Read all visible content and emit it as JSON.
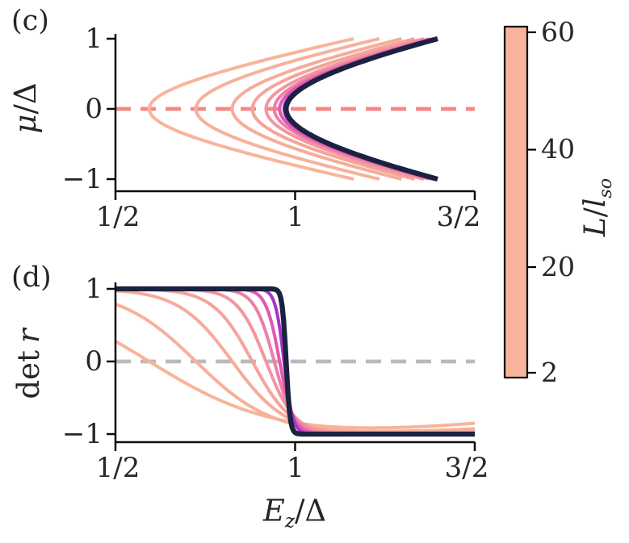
{
  "labels": {
    "panel_c": "(c)",
    "panel_d": "(d)",
    "ylabel_c": {
      "mu": "μ",
      "slash": "/",
      "delta": "Δ"
    },
    "ylabel_d": {
      "det": "det",
      "r": "r"
    },
    "xlabel": {
      "E": "E",
      "z": "z",
      "slash": "/",
      "delta": "Δ"
    },
    "cbar_label": {
      "L": "L",
      "slash": "/",
      "l": "l",
      "so": "so"
    }
  },
  "panels": {
    "c": {
      "ytick_labels": [
        "1",
        "0",
        "−1"
      ],
      "xtick_labels": [
        "1/2",
        "1",
        "3/2"
      ]
    },
    "d": {
      "ytick_labels": [
        "1",
        "0",
        "−1"
      ],
      "xtick_labels": [
        "1/2",
        "1",
        "3/2"
      ]
    }
  },
  "colorbar": {
    "label_text": "L/l_so",
    "tick_labels": [
      "60",
      "40",
      "20",
      "2"
    ],
    "tick_values": [
      60,
      40,
      20,
      2
    ],
    "min": 2,
    "max": 60,
    "stops": [
      [
        0.0,
        "#f8b49a"
      ],
      [
        0.08,
        "#f5a69b"
      ],
      [
        0.16,
        "#f2959f"
      ],
      [
        0.24,
        "#ee83a5"
      ],
      [
        0.32,
        "#e96eab"
      ],
      [
        0.4,
        "#e15ab2"
      ],
      [
        0.48,
        "#d347ba"
      ],
      [
        0.56,
        "#c138c2"
      ],
      [
        0.64,
        "#ab33c9"
      ],
      [
        0.72,
        "#9230cb"
      ],
      [
        0.8,
        "#7430b8"
      ],
      [
        0.86,
        "#522b92"
      ],
      [
        0.93,
        "#332659"
      ],
      [
        1.0,
        "#1b2240"
      ]
    ]
  },
  "style": {
    "dash_c": "#f98585",
    "dash_d": "#bababa",
    "spine": "#0d0d0d",
    "navy": "#1b2240",
    "curve_width": 4,
    "navy_width": 6.3
  },
  "chart_data": [
    {
      "panel": "c",
      "type": "line",
      "ylabel": "mu/Delta",
      "xlim": [
        0.5,
        1.5
      ],
      "ylim": [
        -1.15,
        1.15
      ],
      "xticks": [
        0.5,
        1,
        1.5
      ],
      "xtick_labels": [
        "1/2",
        "1",
        "3/2"
      ],
      "yticks": [
        -1,
        0,
        1
      ],
      "zero_line": {
        "y": 0,
        "style": "dashed",
        "color": "#f98585"
      },
      "model": "Ez(mu) = sqrt(x0^2 + mu^2) for mu in [-1, 1]; x0 = gap-closing field at mu=0",
      "series": [
        {
          "L_over_lso": 2,
          "x0": 0.594
        },
        {
          "L_over_lso": 3.1,
          "x0": 0.724
        },
        {
          "L_over_lso": 4.7,
          "x0": 0.825
        },
        {
          "L_over_lso": 7.2,
          "x0": 0.881
        },
        {
          "L_over_lso": 11,
          "x0": 0.919
        },
        {
          "L_over_lso": 16.8,
          "x0": 0.942
        },
        {
          "L_over_lso": 25.6,
          "x0": 0.957
        },
        {
          "L_over_lso": 39.2,
          "x0": 0.969
        },
        {
          "L_over_lso": 60,
          "x0": 0.975
        }
      ]
    },
    {
      "panel": "d",
      "type": "line",
      "ylabel": "det r",
      "xlabel": "Ez/Delta",
      "xlim": [
        0.5,
        1.5
      ],
      "ylim": [
        -1.1,
        1.1
      ],
      "xticks": [
        0.5,
        1,
        1.5
      ],
      "xtick_labels": [
        "1/2",
        "1",
        "3/2"
      ],
      "yticks": [
        -1,
        0,
        1
      ],
      "zero_line": {
        "y": 0,
        "style": "dashed",
        "color": "#bababa"
      },
      "model": "det r(Ez) = -tanh((Ez - x0)/w) + tail*max(0, Ez - 1)^1.5",
      "series": [
        {
          "L_over_lso": 2,
          "x0": 0.594,
          "w": 0.33,
          "tail": 0.4
        },
        {
          "L_over_lso": 3.1,
          "x0": 0.724,
          "w": 0.21,
          "tail": 0.2
        },
        {
          "L_over_lso": 4.7,
          "x0": 0.825,
          "w": 0.15,
          "tail": 0.1
        },
        {
          "L_over_lso": 7.2,
          "x0": 0.881,
          "w": 0.11,
          "tail": 0.05
        },
        {
          "L_over_lso": 11,
          "x0": 0.919,
          "w": 0.08,
          "tail": 0.02
        },
        {
          "L_over_lso": 16.8,
          "x0": 0.942,
          "w": 0.055,
          "tail": 0
        },
        {
          "L_over_lso": 25.6,
          "x0": 0.957,
          "w": 0.038,
          "tail": 0
        },
        {
          "L_over_lso": 39.2,
          "x0": 0.969,
          "w": 0.024,
          "tail": 0
        },
        {
          "L_over_lso": 60,
          "x0": 0.975,
          "w": 0.011,
          "tail": 0
        }
      ]
    }
  ]
}
